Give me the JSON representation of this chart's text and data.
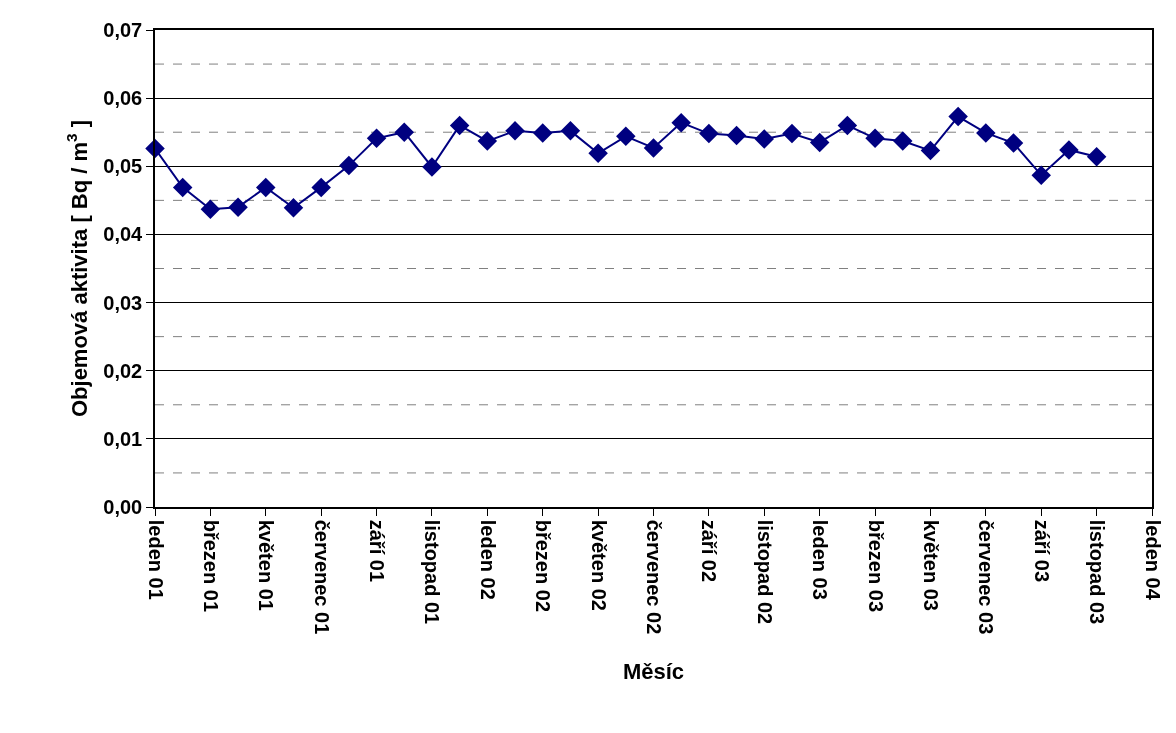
{
  "chart_data": {
    "type": "line",
    "xlabel": "Měsíc",
    "ylabel": "Objemová aktivita [ Bq / m$^{3}$ ]",
    "categories": [
      "leden 01",
      null,
      "březen 01",
      null,
      "květen 01",
      null,
      "červenec 01",
      null,
      "září 01",
      null,
      "listopad 01",
      null,
      "leden 02",
      null,
      "březen 02",
      null,
      "květen 02",
      null,
      "červenec 02",
      null,
      "září 02",
      null,
      "listopad 02",
      null,
      "leden 03",
      null,
      "březen 03",
      null,
      "květen 03",
      null,
      "červenec 03",
      null,
      "září 03",
      null,
      "listopad 03",
      null,
      "leden 04"
    ],
    "series": [
      {
        "color": "#000080",
        "values": [
          0.0526,
          0.0469,
          0.0437,
          0.044,
          0.0469,
          0.0439,
          0.0469,
          0.0501,
          0.0541,
          0.055,
          0.0499,
          0.056,
          0.0537,
          0.0552,
          0.0549,
          0.0552,
          0.0519,
          0.0544,
          0.0527,
          0.0564,
          0.0548,
          0.0545,
          0.054,
          0.0548,
          0.0535,
          0.056,
          0.0541,
          0.0537,
          0.0523,
          0.0573,
          0.0549,
          0.0534,
          0.0487,
          0.0524,
          0.0514,
          null,
          null
        ]
      }
    ],
    "ylim": [
      0,
      0.07
    ],
    "yticks": [
      {
        "value": 0,
        "label": "0,00"
      },
      {
        "value": 0.01,
        "label": "0,01"
      },
      {
        "value": 0.02,
        "label": "0,02"
      },
      {
        "value": 0.03,
        "label": "0,03"
      },
      {
        "value": 0.04,
        "label": "0,04"
      },
      {
        "value": 0.05,
        "label": "0,05"
      },
      {
        "value": 0.06,
        "label": "0,06"
      },
      {
        "value": 0.07,
        "label": "0,07"
      }
    ],
    "grid": "y",
    "ref_lines": [
      {
        "axis": "y",
        "value": 0.005,
        "color": "#808080",
        "line_style": "dashed"
      },
      {
        "axis": "y",
        "value": 0.015,
        "color": "#808080",
        "line_style": "dashed"
      },
      {
        "axis": "y",
        "value": 0.025,
        "color": "#808080",
        "line_style": "dashed"
      },
      {
        "axis": "y",
        "value": 0.035,
        "color": "#808080",
        "line_style": "dashed"
      },
      {
        "axis": "y",
        "value": 0.045,
        "color": "#808080",
        "line_style": "dashed"
      },
      {
        "axis": "y",
        "value": 0.055,
        "color": "#808080",
        "line_style": "dashed"
      },
      {
        "axis": "y",
        "value": 0.065,
        "color": "#808080",
        "line_style": "dashed"
      }
    ],
    "marker": "diamond",
    "line_style": "solid"
  }
}
